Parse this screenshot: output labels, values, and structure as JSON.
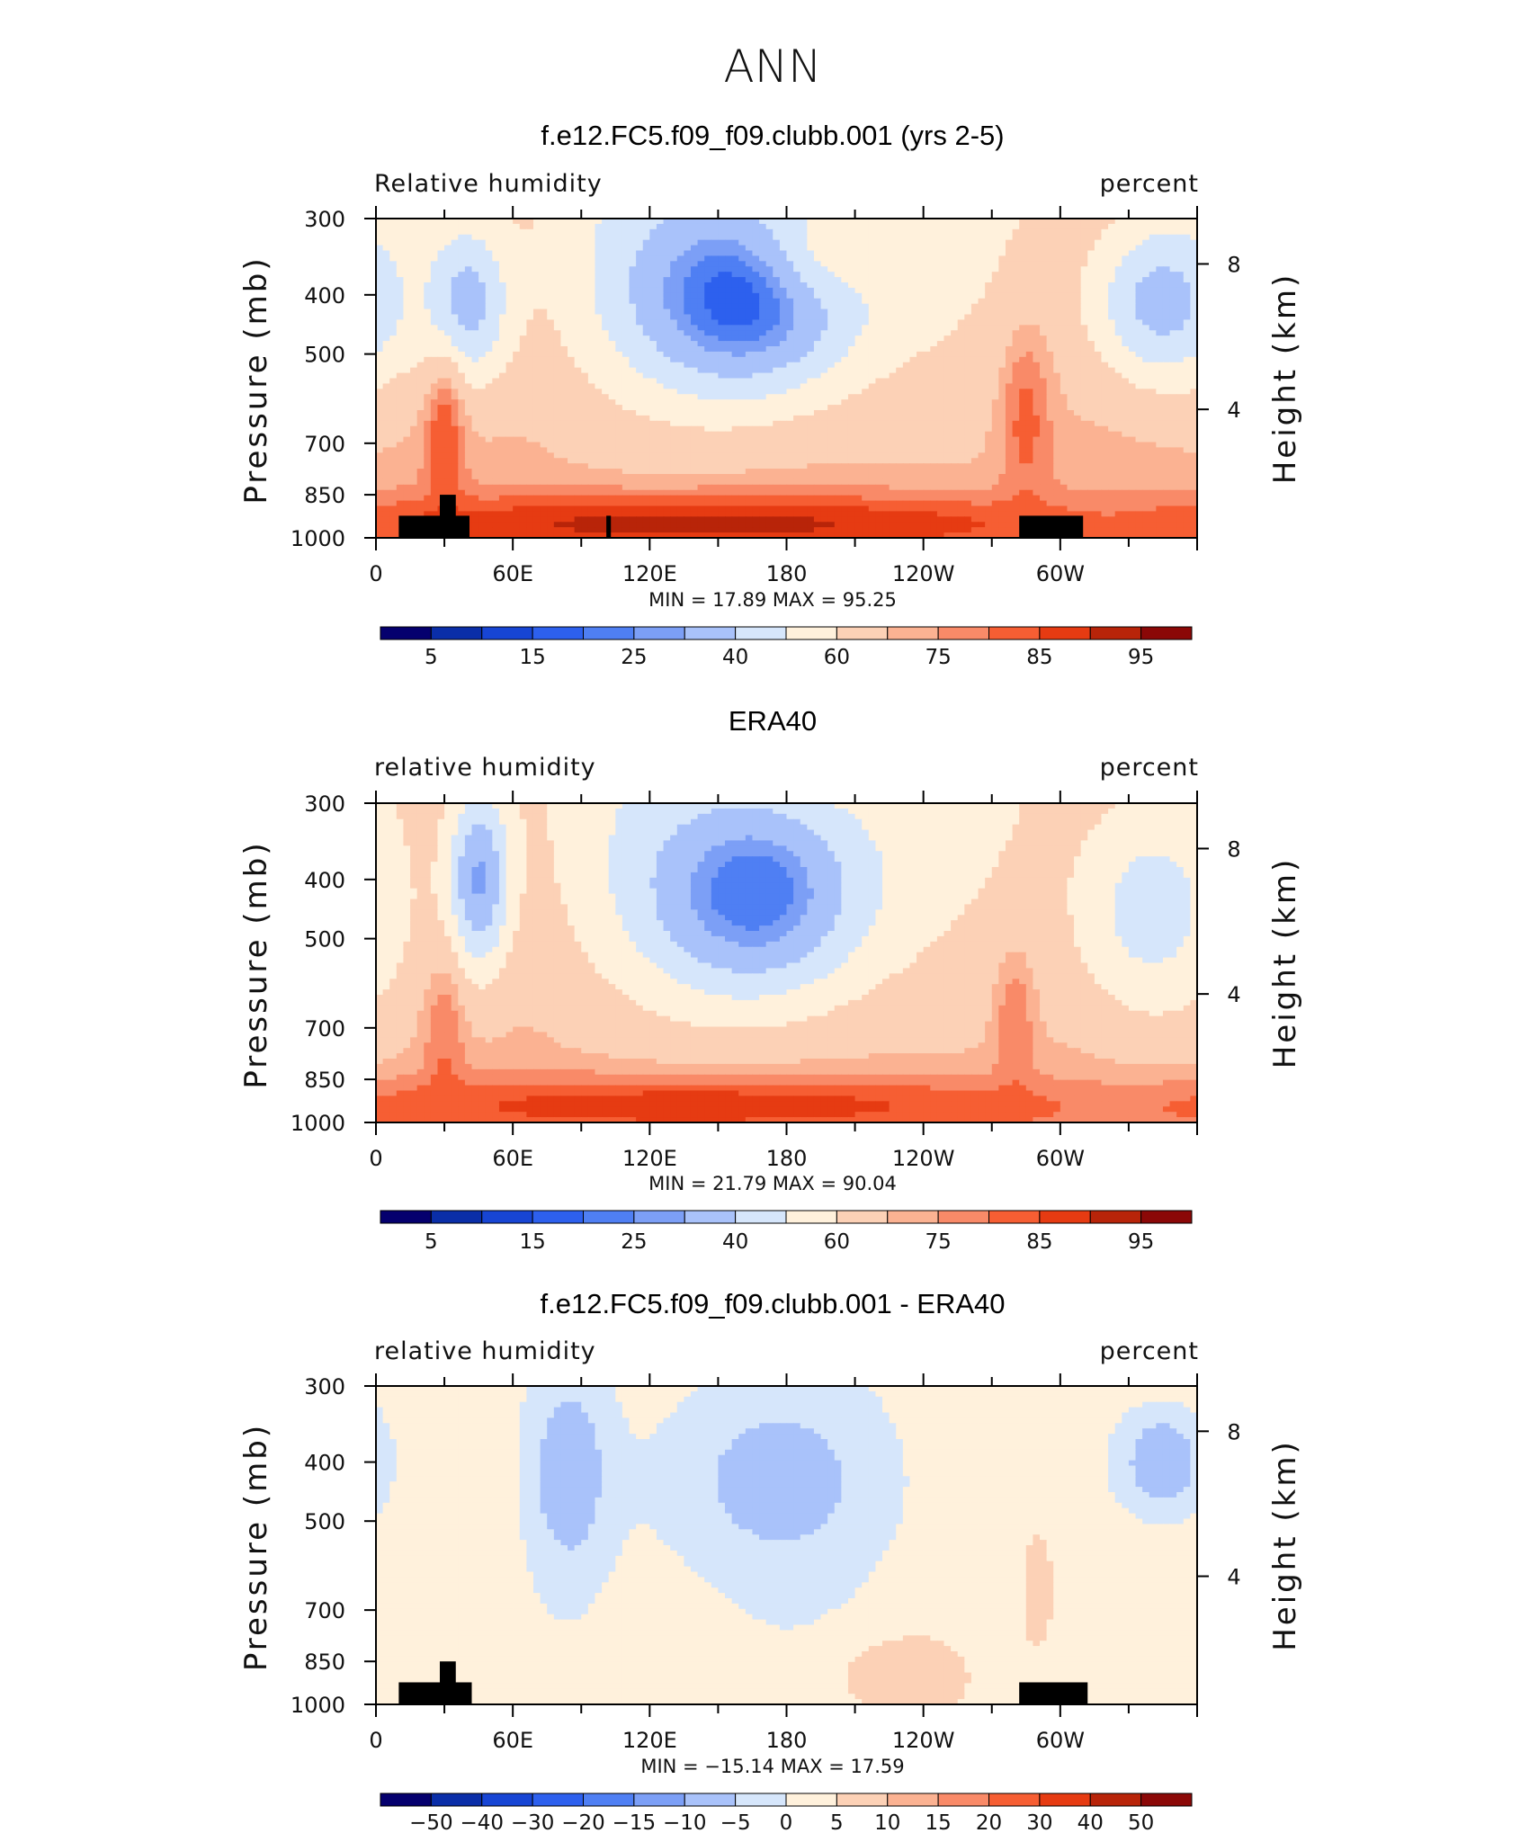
{
  "figure_title": "ANN",
  "colors": {
    "abs_scale": [
      "#05006e",
      "#0a2ea8",
      "#1745d4",
      "#2d60ee",
      "#4f7ff3",
      "#7c9ff6",
      "#a9c2fa",
      "#d6e6fb",
      "#fff1dc",
      "#fcd1b6",
      "#fbb292",
      "#f98a68",
      "#f65e33",
      "#e63b12",
      "#b82409",
      "#8b0807"
    ],
    "diff_scale": [
      "#05006e",
      "#0a2ea8",
      "#1745d4",
      "#2d60ee",
      "#4f7ff3",
      "#7c9ff6",
      "#a9c2fa",
      "#d6e6fb",
      "#fff1dc",
      "#fcd1b6",
      "#fbb292",
      "#f98a68",
      "#f65e33",
      "#e63b12",
      "#b82409",
      "#8b0807"
    ],
    "terrain": "#000000"
  },
  "chart_data": [
    {
      "type": "heatmap",
      "title": "f.e12.FC5.f09_f09.clubb.001 (yrs 2-5)",
      "left_label": "Relative humidity",
      "right_label": "percent",
      "ylabel": "Pressure (mb)",
      "ylabel_right": "Height (km)",
      "x_ticks": [
        "0",
        "60E",
        "120E",
        "180",
        "120W",
        "60W"
      ],
      "y_ticks": [
        "300",
        "400",
        "500",
        "700",
        "850",
        "1000"
      ],
      "y_ticks_right": [
        "8",
        "4"
      ],
      "ylim": [
        1000,
        300
      ],
      "xlim": [
        0,
        360
      ],
      "y_scale": "log",
      "stats": {
        "min_label": "MIN =",
        "min": "17.89",
        "max_label": "MAX =",
        "max": "95.25"
      },
      "colorbar_labels": [
        "5",
        "15",
        "25",
        "40",
        "60",
        "75",
        "85",
        "95"
      ],
      "features": [
        {
          "lon": 160,
          "p": 400,
          "value": 15,
          "spread_lon": 38,
          "spread_p": 0.28
        },
        {
          "lon": 40,
          "p": 410,
          "value": 35,
          "spread_lon": 14,
          "spread_p": 0.22
        },
        {
          "lon": 345,
          "p": 410,
          "value": 35,
          "spread_lon": 22,
          "spread_p": 0.22
        },
        {
          "lon": 210,
          "p": 330,
          "value": 55,
          "spread_lon": 25,
          "spread_p": 0.15
        },
        {
          "lon": 285,
          "p": 650,
          "value": 82,
          "spread_lon": 8,
          "spread_p": 0.25
        },
        {
          "lon": 30,
          "p": 700,
          "value": 85,
          "spread_lon": 6,
          "spread_p": 0.2
        },
        {
          "lon": 140,
          "p": 950,
          "value": 92,
          "spread_lon": 130,
          "spread_p": 0.08
        }
      ],
      "terrain": [
        {
          "lon_start": 10,
          "lon_end": 41,
          "p_top": 920
        },
        {
          "lon_start": 28,
          "lon_end": 35,
          "p_top": 850
        },
        {
          "lon_start": 101,
          "lon_end": 103,
          "p_top": 920
        },
        {
          "lon_start": 282,
          "lon_end": 310,
          "p_top": 920
        }
      ]
    },
    {
      "type": "heatmap",
      "title": "ERA40",
      "left_label": "relative humidity",
      "right_label": "percent",
      "ylabel": "Pressure (mb)",
      "ylabel_right": "Height (km)",
      "x_ticks": [
        "0",
        "60E",
        "120E",
        "180",
        "120W",
        "60W"
      ],
      "y_ticks": [
        "300",
        "400",
        "500",
        "700",
        "850",
        "1000"
      ],
      "y_ticks_right": [
        "8",
        "4"
      ],
      "ylim": [
        1000,
        300
      ],
      "xlim": [
        0,
        360
      ],
      "y_scale": "log",
      "stats": {
        "min_label": "MIN =",
        "min": "21.79",
        "max_label": "MAX =",
        "max": "90.04"
      },
      "colorbar_labels": [
        "5",
        "15",
        "25",
        "40",
        "60",
        "75",
        "85",
        "95"
      ],
      "features": [
        {
          "lon": 165,
          "p": 420,
          "value": 20,
          "spread_lon": 38,
          "spread_p": 0.3
        },
        {
          "lon": 45,
          "p": 400,
          "value": 28,
          "spread_lon": 10,
          "spread_p": 0.25
        },
        {
          "lon": 340,
          "p": 450,
          "value": 45,
          "spread_lon": 25,
          "spread_p": 0.3
        },
        {
          "lon": 280,
          "p": 700,
          "value": 80,
          "spread_lon": 6,
          "spread_p": 0.2
        },
        {
          "lon": 30,
          "p": 750,
          "value": 80,
          "spread_lon": 6,
          "spread_p": 0.2
        },
        {
          "lon": 140,
          "p": 940,
          "value": 88,
          "spread_lon": 130,
          "spread_p": 0.08
        }
      ],
      "terrain": []
    },
    {
      "type": "heatmap",
      "title": "f.e12.FC5.f09_f09.clubb.001 - ERA40",
      "left_label": "relative humidity",
      "right_label": "percent",
      "ylabel": "Pressure (mb)",
      "ylabel_right": "Height (km)",
      "x_ticks": [
        "0",
        "60E",
        "120E",
        "180",
        "120W",
        "60W"
      ],
      "y_ticks": [
        "300",
        "400",
        "500",
        "700",
        "850",
        "1000"
      ],
      "y_ticks_right": [
        "8",
        "4"
      ],
      "ylim": [
        1000,
        300
      ],
      "xlim": [
        0,
        360
      ],
      "y_scale": "log",
      "stats": {
        "min_label": "MIN =",
        "min": "−15.14",
        "max_label": "MAX =",
        "max": "17.59"
      },
      "colorbar_labels": [
        "−50",
        "−40",
        "−30",
        "−20",
        "−15",
        "−10",
        "−5",
        "0",
        "5",
        "10",
        "15",
        "20",
        "30",
        "40",
        "50"
      ],
      "features": [
        {
          "lon": 85,
          "p": 420,
          "value": -10,
          "spread_lon": 12,
          "spread_p": 0.25
        },
        {
          "lon": 175,
          "p": 430,
          "value": -7,
          "spread_lon": 40,
          "spread_p": 0.3
        },
        {
          "lon": 345,
          "p": 400,
          "value": -10,
          "spread_lon": 14,
          "spread_p": 0.15
        },
        {
          "lon": 230,
          "p": 900,
          "value": 7,
          "spread_lon": 25,
          "spread_p": 0.12
        },
        {
          "lon": 290,
          "p": 650,
          "value": 8,
          "spread_lon": 6,
          "spread_p": 0.2
        },
        {
          "lon": 45,
          "p": 650,
          "value": 4,
          "spread_lon": 8,
          "spread_p": 0.3
        }
      ],
      "terrain": [
        {
          "lon_start": 10,
          "lon_end": 42,
          "p_top": 920
        },
        {
          "lon_start": 28,
          "lon_end": 35,
          "p_top": 850
        },
        {
          "lon_start": 282,
          "lon_end": 312,
          "p_top": 920
        }
      ]
    }
  ]
}
